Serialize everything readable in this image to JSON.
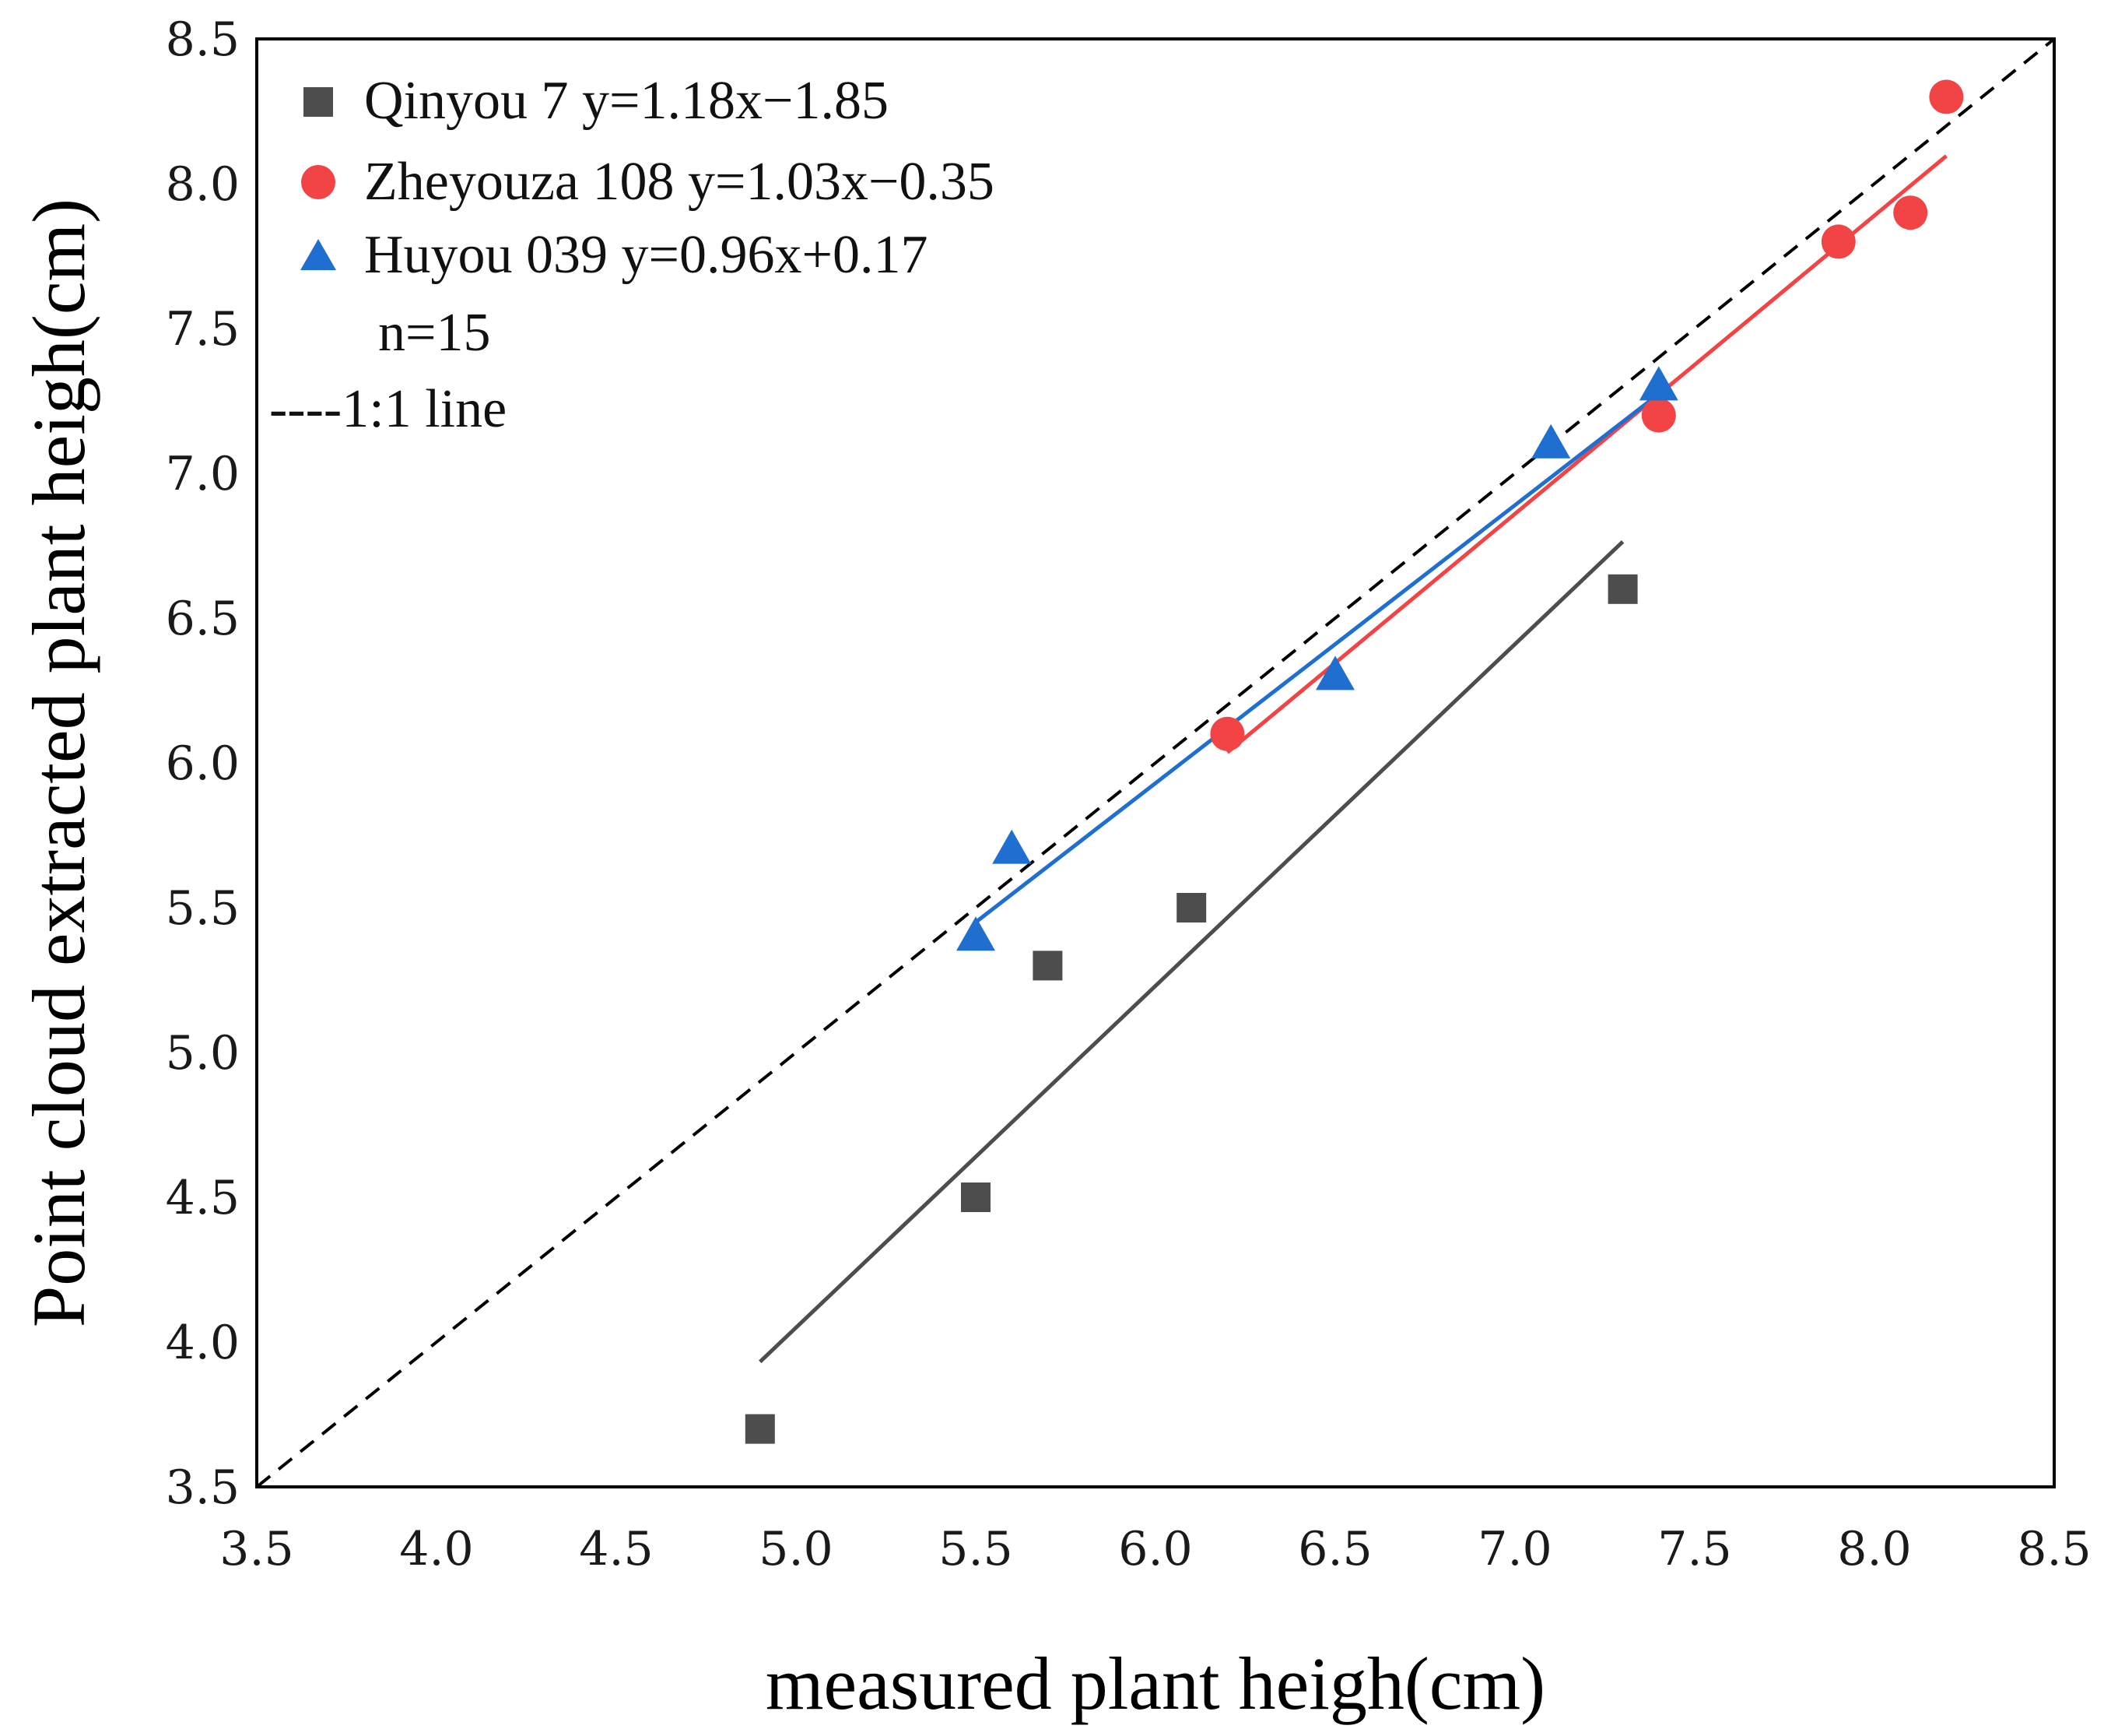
{
  "chart_data": {
    "type": "scatter",
    "xlabel": "measured plant heigh(cm)",
    "ylabel": "Point cloud extracted plant heigh(cm)",
    "xlim": [
      3.5,
      8.5
    ],
    "ylim": [
      3.5,
      8.5
    ],
    "x_ticks": [
      "3.5",
      "4.0",
      "4.5",
      "5.0",
      "5.5",
      "6.0",
      "6.5",
      "7.0",
      "7.5",
      "8.0",
      "8.5"
    ],
    "y_ticks": [
      "3.5",
      "4.0",
      "4.5",
      "5.0",
      "5.5",
      "6.0",
      "6.5",
      "7.0",
      "7.5",
      "8.0",
      "8.5"
    ],
    "series": [
      {
        "name": "Qinyou 7",
        "equation": "y=1.18x−1.85",
        "legend_label": "Qinyou 7 y=1.18x−1.85",
        "marker": "square",
        "color": "#4d4d4d",
        "points": [
          [
            4.9,
            3.7
          ],
          [
            5.5,
            4.5
          ],
          [
            5.7,
            5.3
          ],
          [
            6.1,
            5.5
          ],
          [
            7.3,
            6.6
          ]
        ],
        "fit": {
          "slope": 1.18,
          "intercept": -1.85,
          "x_range": [
            4.9,
            7.3
          ]
        }
      },
      {
        "name": "Zheyouza 108",
        "equation": "y=1.03x−0.35",
        "legend_label": "Zheyouza 108 y=1.03x−0.35",
        "marker": "circle",
        "color": "#f24444",
        "points": [
          [
            6.2,
            6.1
          ],
          [
            7.4,
            7.2
          ],
          [
            7.9,
            7.8
          ],
          [
            8.1,
            7.9
          ],
          [
            8.2,
            8.3
          ]
        ],
        "fit": {
          "slope": 1.03,
          "intercept": -0.35,
          "x_range": [
            6.2,
            8.2
          ]
        }
      },
      {
        "name": "Huyou 039",
        "equation": "y=0.96x+0.17",
        "legend_label": "Huyou 039 y=0.96x+0.17",
        "marker": "triangle",
        "color": "#1f6fd1",
        "points": [
          [
            5.5,
            5.4
          ],
          [
            5.6,
            5.7
          ],
          [
            6.5,
            6.3
          ],
          [
            7.1,
            7.1
          ],
          [
            7.4,
            7.3
          ]
        ],
        "fit": {
          "slope": 0.96,
          "intercept": 0.17,
          "x_range": [
            5.5,
            7.4
          ]
        }
      }
    ],
    "annotations": [
      "n=15"
    ],
    "reference_line": {
      "label": "----1:1 line",
      "slope": 1,
      "intercept": 0,
      "style": "dashed",
      "color": "#000000"
    },
    "grid": false,
    "legend_position": "top-left"
  }
}
